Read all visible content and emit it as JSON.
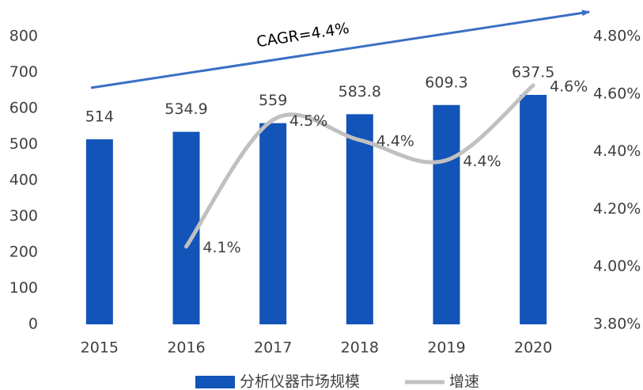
{
  "chart_data": {
    "type": "bar-line",
    "annotation": "CAGR=4.4%",
    "categories": [
      "2015",
      "2016",
      "2017",
      "2018",
      "2019",
      "2020"
    ],
    "series": [
      {
        "name": "分析仪器市场规模",
        "type": "bar",
        "color": "#1254b8",
        "values": [
          514,
          534.9,
          559,
          583.8,
          609.3,
          637.5
        ]
      },
      {
        "name": "增速",
        "type": "line",
        "axis": "y2",
        "color": "#c0c0c0",
        "values": [
          null,
          4.07,
          4.51,
          4.44,
          4.37,
          4.63
        ],
        "value_labels": [
          null,
          "4.1%",
          "4.5%",
          "4.4%",
          "4.4%",
          "4.6%"
        ]
      }
    ],
    "ylim": [
      0,
      800
    ],
    "yticks": [
      0,
      100,
      200,
      300,
      400,
      500,
      600,
      700,
      800
    ],
    "y2lim": [
      3.8,
      4.8
    ],
    "y2ticks": [
      {
        "value": 3.8,
        "label": "3.80%"
      },
      {
        "value": 4.0,
        "label": "4.00%"
      },
      {
        "value": 4.2,
        "label": "4.20%"
      },
      {
        "value": 4.4,
        "label": "4.40%"
      },
      {
        "value": 4.6,
        "label": "4.60%"
      },
      {
        "value": 4.8,
        "label": "4.80%"
      }
    ],
    "grid": false,
    "legend": "bottom"
  }
}
